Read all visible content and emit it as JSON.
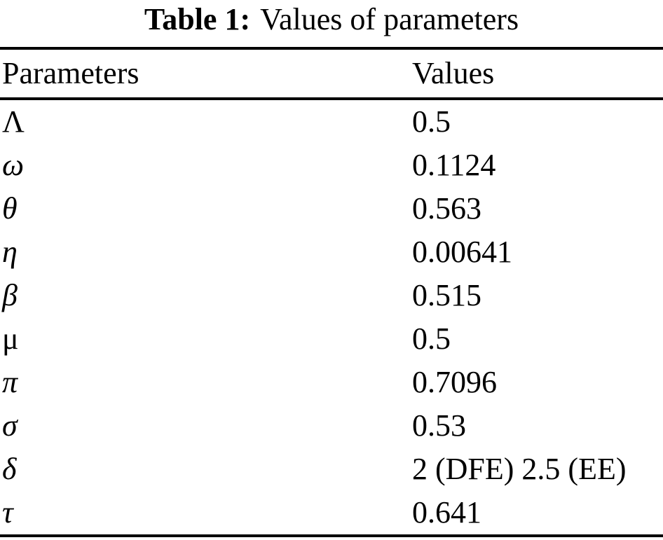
{
  "page": {
    "background_color": "#ffffff",
    "text_color": "#000000"
  },
  "caption": {
    "label": "Table 1:",
    "text": "Values of parameters"
  },
  "table": {
    "headers": {
      "parameter": "Parameters",
      "value": "Values"
    },
    "rows": [
      {
        "symbol": "Λ",
        "name": "Lambda",
        "style": "upright",
        "value": "0.5"
      },
      {
        "symbol": "ω",
        "name": "omega",
        "style": "italic",
        "value": "0.1124"
      },
      {
        "symbol": "θ",
        "name": "theta",
        "style": "italic",
        "value": "0.563"
      },
      {
        "symbol": "η",
        "name": "eta",
        "style": "italic",
        "value": "0.00641"
      },
      {
        "symbol": "β",
        "name": "beta",
        "style": "italic",
        "value": "0.515"
      },
      {
        "symbol": "μ",
        "name": "mu",
        "style": "upright",
        "value": "0.5"
      },
      {
        "symbol": "π",
        "name": "pi",
        "style": "italic",
        "value": "0.7096"
      },
      {
        "symbol": "σ",
        "name": "sigma",
        "style": "italic",
        "value": "0.53"
      },
      {
        "symbol": "δ",
        "name": "delta",
        "style": "italic",
        "value": "2 (DFE) 2.5 (EE)"
      },
      {
        "symbol": "τ",
        "name": "tau",
        "style": "italic",
        "value": "0.641"
      }
    ]
  }
}
